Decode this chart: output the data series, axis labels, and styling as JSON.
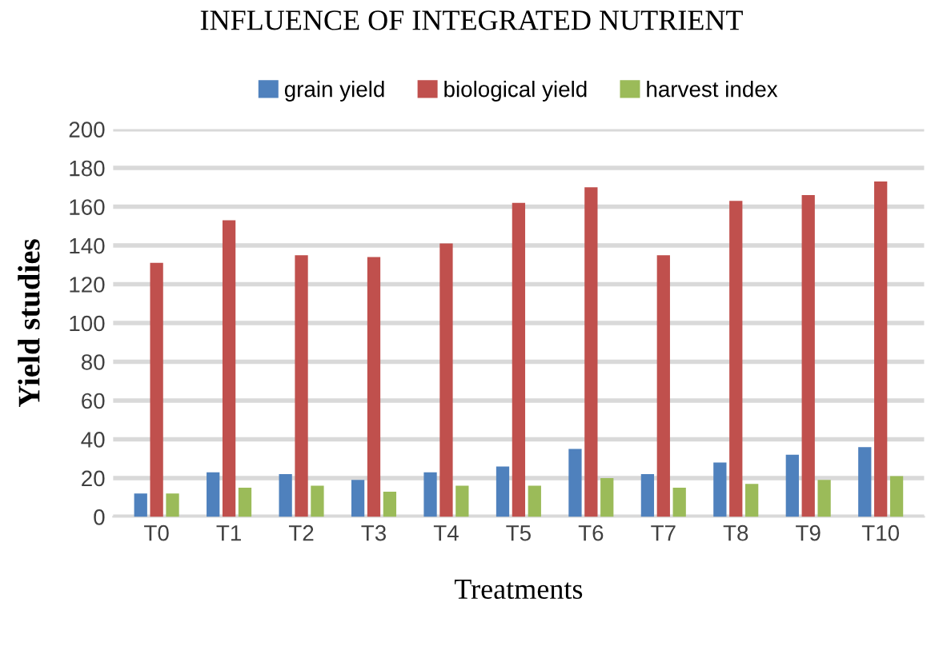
{
  "chart_data": {
    "type": "bar",
    "title": "INFLUENCE OF INTEGRATED NUTRIENT",
    "xlabel": "Treatments",
    "ylabel": "Yield studies",
    "categories": [
      "T0",
      "T1",
      "T2",
      "T3",
      "T4",
      "T5",
      "T6",
      "T7",
      "T8",
      "T9",
      "T10"
    ],
    "series": [
      {
        "name": "grain yield",
        "color": "#4f81bd",
        "values": [
          12,
          23,
          22,
          19,
          23,
          26,
          35,
          22,
          28,
          32,
          36
        ]
      },
      {
        "name": "biological yield",
        "color": "#c0504d",
        "values": [
          131,
          153,
          135,
          134,
          141,
          162,
          170,
          135,
          163,
          166,
          173
        ]
      },
      {
        "name": "harvest index",
        "color": "#9bbb59",
        "values": [
          12,
          15,
          16,
          13,
          16,
          16,
          20,
          15,
          17,
          19,
          21
        ]
      }
    ],
    "ylim": [
      0,
      200
    ],
    "yticks": [
      0,
      20,
      40,
      60,
      80,
      100,
      120,
      140,
      160,
      180,
      200
    ],
    "grid": "y",
    "legend": "top"
  }
}
